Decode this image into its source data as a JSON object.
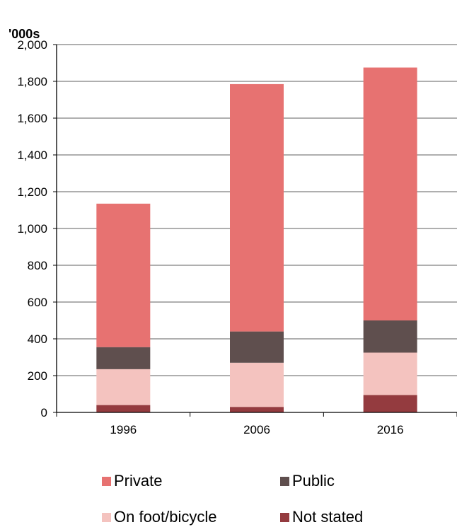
{
  "chart_data": {
    "type": "bar",
    "stacked": true,
    "unit_label": "'000s",
    "categories": [
      "1996",
      "2006",
      "2016"
    ],
    "ylim": [
      0,
      2000
    ],
    "yticks": [
      0,
      200,
      400,
      600,
      800,
      1000,
      1200,
      1400,
      1600,
      1800,
      2000
    ],
    "ytick_labels": [
      "0",
      "200",
      "400",
      "600",
      "800",
      "1,000",
      "1,200",
      "1,400",
      "1,600",
      "1,800",
      "2,000"
    ],
    "grid": true,
    "legend_position": "bottom",
    "series": [
      {
        "name": "Not stated",
        "color": "#943b3f",
        "values": [
          40,
          30,
          95
        ]
      },
      {
        "name": "On foot/bicycle",
        "color": "#f4c3bf",
        "values": [
          195,
          240,
          230
        ]
      },
      {
        "name": "Public",
        "color": "#5f4f4e",
        "values": [
          120,
          170,
          175
        ]
      },
      {
        "name": "Private",
        "color": "#e77271",
        "values": [
          780,
          1345,
          1375
        ]
      }
    ],
    "legend_order": [
      "Private",
      "Public",
      "On foot/bicycle",
      "Not stated"
    ]
  }
}
